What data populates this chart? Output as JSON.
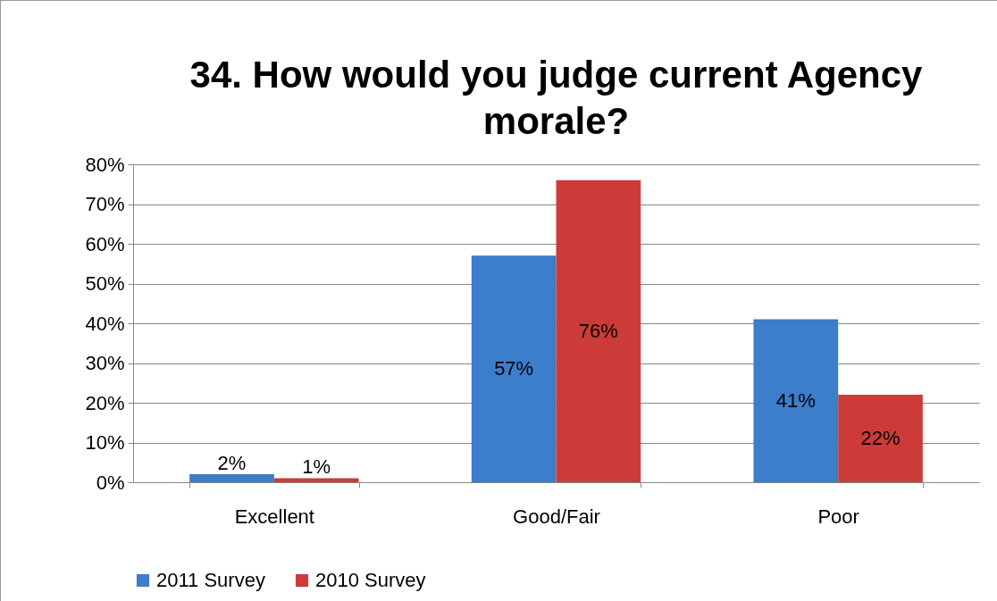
{
  "chart_data": {
    "type": "bar",
    "title": "34. How would you judge current Agency morale?",
    "categories": [
      "Excellent",
      "Good/Fair",
      "Poor"
    ],
    "series": [
      {
        "name": "2011 Survey",
        "color": "#3c7dcc",
        "values": [
          2,
          57,
          41
        ],
        "value_labels": [
          "2%",
          "57%",
          "41%"
        ]
      },
      {
        "name": "2010 Survey",
        "color": "#cc3b37",
        "values": [
          1,
          76,
          22
        ],
        "value_labels": [
          "1%",
          "76%",
          "22%"
        ]
      }
    ],
    "ylim": [
      0,
      80
    ],
    "yticks": [
      {
        "value": 0,
        "label": "0%"
      },
      {
        "value": 10,
        "label": "10%"
      },
      {
        "value": 20,
        "label": "20%"
      },
      {
        "value": 30,
        "label": "30%"
      },
      {
        "value": 40,
        "label": "40%"
      },
      {
        "value": 50,
        "label": "50%"
      },
      {
        "value": 60,
        "label": "60%"
      },
      {
        "value": 70,
        "label": "70%"
      },
      {
        "value": 80,
        "label": "80%"
      }
    ],
    "grid": "y",
    "legend": "bottom"
  }
}
